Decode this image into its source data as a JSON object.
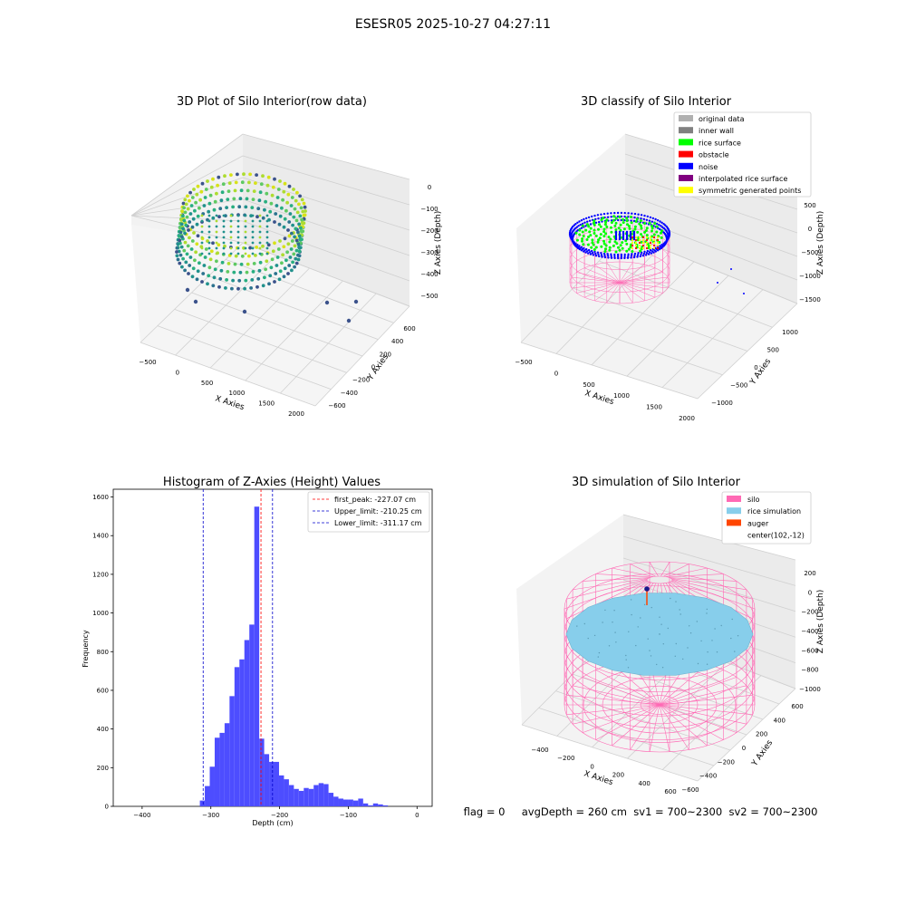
{
  "figure": {
    "suptitle": "ESESR05 2025-10-27 04:27:11",
    "status_line": "flag = 0     avgDepth = 260 cm  sv1 = 700~2300  sv2 = 700~2300"
  },
  "colors": {
    "histogram_bar": "#4d4dff",
    "first_peak": "#ff0000",
    "limit_line": "#0000cc",
    "silo": "#ff69b4",
    "rice_simulation": "#87ceeb",
    "auger": "#ff4500",
    "rice_surface": "#00ff00",
    "noise": "#0000ff",
    "inner_wall": "#808080",
    "original_data": "#b0b0b0",
    "obstacle": "#ff0000",
    "interpolated": "#800080",
    "symmetric": "#ffff00"
  },
  "chart_data": [
    {
      "type": "scatter",
      "title": "3D Plot of Silo Interior(row data)",
      "xlabel": "X Axies",
      "ylabel": "Y Axies",
      "zlabel": "Z Axies (Depth)",
      "x_ticks": [
        "−500",
        "0",
        "500",
        "1000",
        "1500",
        "2000"
      ],
      "y_ticks": [
        "−600",
        "−400",
        "−200",
        "0",
        "200",
        "400",
        "600"
      ],
      "z_ticks": [
        "0",
        "−100",
        "−200",
        "−300",
        "−400",
        "−500"
      ],
      "xlim": [
        -600,
        2050
      ],
      "ylim": [
        -650,
        650
      ],
      "zlim": [
        -560,
        20
      ],
      "colormap": "viridis",
      "description_points": "dense ring of points near z ≈ -230, with a few outliers near z ≈ -520"
    },
    {
      "type": "scatter",
      "title": "3D classify of Silo Interior",
      "xlabel": "X Axies",
      "ylabel": "Y Axies",
      "zlabel": "Z Axies (Depth)",
      "x_ticks": [
        "−500",
        "0",
        "500",
        "1000",
        "1500",
        "2000"
      ],
      "y_ticks": [
        "−1000",
        "−500",
        "0",
        "500",
        "1000"
      ],
      "z_ticks": [
        "500",
        "0",
        "−500",
        "−1000",
        "−1500"
      ],
      "legend": [
        "original data",
        "inner wall",
        "rice surface",
        "obstacle",
        "noise",
        "interpolated rice surface",
        "symmetric generated points"
      ],
      "legend_position": "top-right"
    },
    {
      "type": "bar",
      "title": "Histogram of Z-Axies (Height) Values",
      "xlabel": "Depth (cm)",
      "ylabel": "Frequency",
      "x_ticks": [
        "−400",
        "−300",
        "−200",
        "−100",
        "0"
      ],
      "x_tick_values": [
        -400,
        -300,
        -200,
        -100,
        0
      ],
      "y_ticks": [
        "0",
        "200",
        "400",
        "600",
        "800",
        "1000",
        "1200",
        "1400",
        "1600"
      ],
      "y_tick_values": [
        0,
        200,
        400,
        600,
        800,
        1000,
        1200,
        1400,
        1600
      ],
      "xlim": [
        -442,
        22
      ],
      "ylim": [
        0,
        1640
      ],
      "bin_width": 7.2,
      "bin_start": -316,
      "values": [
        30,
        105,
        205,
        355,
        380,
        430,
        570,
        720,
        760,
        860,
        940,
        1550,
        350,
        270,
        230,
        230,
        160,
        140,
        110,
        90,
        80,
        95,
        90,
        110,
        120,
        115,
        70,
        50,
        40,
        35,
        35,
        30,
        40,
        15,
        5,
        15,
        10,
        5
      ],
      "vlines": [
        {
          "name": "first_peak: -227.07 cm",
          "x": -227.07,
          "color": "#ff0000"
        },
        {
          "name": "Upper_limit: -210.25 cm",
          "x": -210.25,
          "color": "#0000cc"
        },
        {
          "name": "Lower_limit: -311.17 cm",
          "x": -311.17,
          "color": "#0000cc"
        }
      ],
      "legend_position": "top-right"
    },
    {
      "type": "scatter",
      "title": "3D simulation of Silo Interior",
      "xlabel": "X Axies",
      "ylabel": "Y Axies",
      "zlabel": "Z Axies (Depth)",
      "x_ticks": [
        "−400",
        "−200",
        "0",
        "200",
        "400",
        "600"
      ],
      "y_ticks": [
        "−600",
        "−400",
        "−200",
        "0",
        "200",
        "400",
        "600"
      ],
      "z_ticks": [
        "200",
        "0",
        "−200",
        "−400",
        "−600",
        "−800",
        "−1000"
      ],
      "legend": [
        "silo",
        "rice simulation",
        "auger",
        "center(102,-12)"
      ],
      "legend_position": "top-right"
    }
  ]
}
